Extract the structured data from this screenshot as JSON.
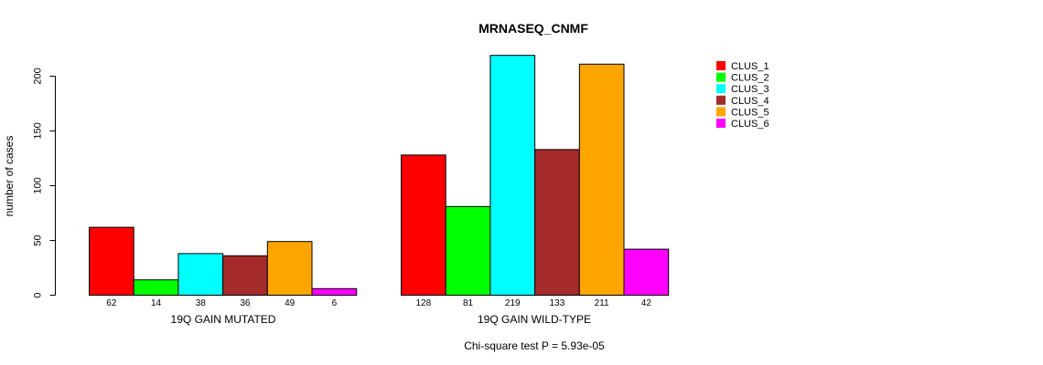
{
  "chart_data": {
    "type": "bar",
    "title": "MRNASEQ_CNMF",
    "ylabel": "number of cases",
    "ylim": [
      0,
      200
    ],
    "yticks": [
      0,
      50,
      100,
      150,
      200
    ],
    "categories": [
      "CLUS_1",
      "CLUS_2",
      "CLUS_3",
      "CLUS_4",
      "CLUS_5",
      "CLUS_6"
    ],
    "groups": [
      {
        "name": "19Q GAIN MUTATED",
        "values": [
          62,
          14,
          38,
          36,
          49,
          6
        ]
      },
      {
        "name": "19Q GAIN WILD-TYPE",
        "values": [
          128,
          81,
          219,
          133,
          211,
          42
        ]
      }
    ],
    "colors": [
      "#ff0000",
      "#00ff00",
      "#00ffff",
      "#a52a2a",
      "#ffa500",
      "#ff00ff"
    ],
    "legend": {
      "position": "top-right",
      "entries": [
        "CLUS_1",
        "CLUS_2",
        "CLUS_3",
        "CLUS_4",
        "CLUS_5",
        "CLUS_6"
      ]
    },
    "footer": "Chi-square test P = 5.93e-05"
  }
}
